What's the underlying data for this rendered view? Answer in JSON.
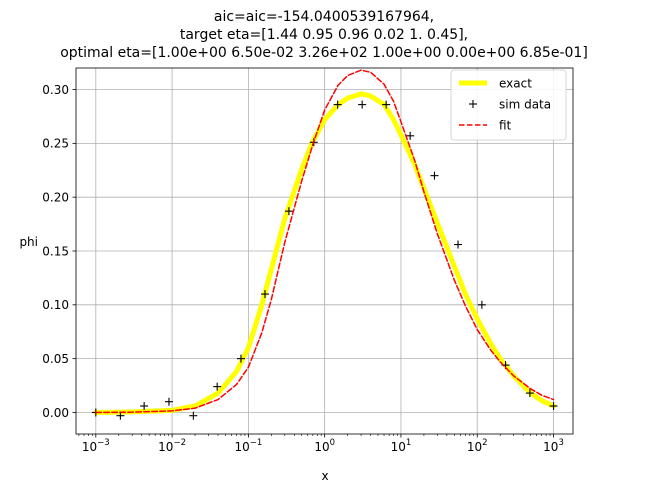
{
  "chart_data": {
    "type": "line",
    "title_lines": [
      "aic=aic=-154.0400539167964,",
      "target eta=[1.44 0.95 0.96 0.02 1.   0.45],",
      "optimal eta=[1.00e+00 6.50e-02 3.26e+02 1.00e+00 0.00e+00 6.85e-01]"
    ],
    "xlabel": "x",
    "ylabel": "phi",
    "xscale": "log",
    "xlim": [
      0.00055,
      1800
    ],
    "ylim": [
      -0.02,
      0.32
    ],
    "grid": true,
    "legend_position": "upper-right",
    "x_ticks": [
      {
        "base": "10",
        "exp": "−3",
        "value": 0.001
      },
      {
        "base": "10",
        "exp": "−2",
        "value": 0.01
      },
      {
        "base": "10",
        "exp": "−1",
        "value": 0.1
      },
      {
        "base": "10",
        "exp": "0",
        "value": 1
      },
      {
        "base": "10",
        "exp": "1",
        "value": 10
      },
      {
        "base": "10",
        "exp": "2",
        "value": 100
      },
      {
        "base": "10",
        "exp": "3",
        "value": 1000
      }
    ],
    "y_ticks": [
      {
        "label": "0.00",
        "value": 0.0
      },
      {
        "label": "0.05",
        "value": 0.05
      },
      {
        "label": "0.10",
        "value": 0.1
      },
      {
        "label": "0.15",
        "value": 0.15
      },
      {
        "label": "0.20",
        "value": 0.2
      },
      {
        "label": "0.25",
        "value": 0.25
      },
      {
        "label": "0.30",
        "value": 0.3
      }
    ],
    "series": [
      {
        "name": "exact",
        "style": "line",
        "color": "#ffff00",
        "x": [
          0.001,
          0.003,
          0.01,
          0.02,
          0.04,
          0.07,
          0.1,
          0.15,
          0.2,
          0.3,
          0.5,
          0.7,
          1.0,
          1.5,
          2.0,
          3.0,
          4.0,
          6.0,
          8.0,
          10,
          15,
          20,
          30,
          50,
          70,
          100,
          150,
          200,
          300,
          500,
          700,
          1000
        ],
        "y": [
          0.0,
          0.0005,
          0.002,
          0.006,
          0.018,
          0.038,
          0.06,
          0.1,
          0.133,
          0.18,
          0.226,
          0.252,
          0.272,
          0.286,
          0.292,
          0.296,
          0.294,
          0.286,
          0.272,
          0.258,
          0.231,
          0.208,
          0.176,
          0.136,
          0.11,
          0.087,
          0.064,
          0.05,
          0.034,
          0.018,
          0.011,
          0.006
        ]
      },
      {
        "name": "sim data",
        "style": "markers",
        "color": "#000000",
        "x": [
          0.001,
          0.0021,
          0.0043,
          0.0091,
          0.019,
          0.039,
          0.08,
          0.165,
          0.34,
          0.72,
          1.48,
          3.1,
          6.4,
          13.2,
          27.5,
          56,
          115,
          235,
          490,
          1000
        ],
        "y": [
          0.0,
          -0.003,
          0.006,
          0.01,
          -0.003,
          0.024,
          0.05,
          0.11,
          0.187,
          0.251,
          0.286,
          0.286,
          0.286,
          0.257,
          0.22,
          0.156,
          0.1,
          0.044,
          0.018,
          0.006
        ]
      },
      {
        "name": "fit",
        "style": "dashed",
        "color": "#ff0000",
        "x": [
          0.001,
          0.003,
          0.01,
          0.02,
          0.04,
          0.07,
          0.1,
          0.15,
          0.2,
          0.3,
          0.5,
          0.7,
          1.0,
          1.5,
          2.0,
          3.0,
          4.0,
          6.0,
          8.0,
          10,
          15,
          20,
          30,
          50,
          70,
          100,
          150,
          200,
          300,
          500,
          700,
          1000
        ],
        "y": [
          0.0,
          0.0003,
          0.0015,
          0.004,
          0.012,
          0.026,
          0.042,
          0.074,
          0.105,
          0.158,
          0.215,
          0.249,
          0.281,
          0.304,
          0.313,
          0.318,
          0.316,
          0.305,
          0.289,
          0.27,
          0.235,
          0.205,
          0.166,
          0.123,
          0.099,
          0.077,
          0.058,
          0.047,
          0.034,
          0.022,
          0.016,
          0.012
        ]
      }
    ]
  }
}
